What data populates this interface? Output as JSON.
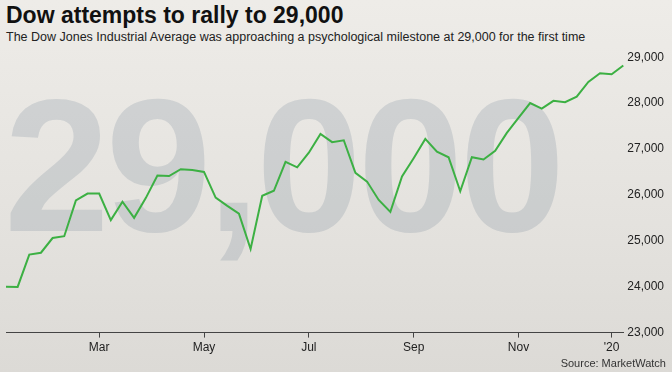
{
  "chart_data": {
    "type": "line",
    "title": "Dow attempts to rally to 29,000",
    "subtitle": "The Dow Jones Industrial Average was approaching a psychological milestone at 29,000 for the first time",
    "source": "Source: MarketWatch",
    "background_text": "29,000",
    "categories": [
      null,
      null,
      null,
      null,
      null,
      null,
      null,
      null,
      "Mar",
      null,
      null,
      null,
      null,
      null,
      null,
      null,
      null,
      "May",
      null,
      null,
      null,
      null,
      null,
      null,
      null,
      null,
      "Jul",
      null,
      null,
      null,
      null,
      null,
      null,
      null,
      null,
      "Sep",
      null,
      null,
      null,
      null,
      null,
      null,
      null,
      null,
      "Nov",
      null,
      null,
      null,
      null,
      null,
      null,
      null,
      "'20",
      null
    ],
    "series": [
      {
        "name": "Dow Jones Industrial Average",
        "color": "#3cb043",
        "values": [
          24000,
          23995,
          24700,
          24740,
          25060,
          25100,
          25880,
          26030,
          26030,
          25450,
          25850,
          25500,
          25930,
          26420,
          26410,
          26560,
          26540,
          26500,
          25940,
          25760,
          25590,
          24820,
          25980,
          26090,
          26720,
          26600,
          26920,
          27330,
          27150,
          27190,
          26480,
          26290,
          25890,
          25630,
          26400,
          26800,
          27220,
          26940,
          26820,
          26080,
          26820,
          26770,
          26960,
          27350,
          27680,
          28000,
          27880,
          28050,
          28020,
          28140,
          28460,
          28650,
          28630,
          28820
        ]
      }
    ],
    "ylim": [
      23000,
      29000
    ],
    "yticks": [
      {
        "value": 23000,
        "label": "23,000"
      },
      {
        "value": 24000,
        "label": "24,000"
      },
      {
        "value": 25000,
        "label": "25,000"
      },
      {
        "value": 26000,
        "label": "26,000"
      },
      {
        "value": 27000,
        "label": "27,000"
      },
      {
        "value": 28000,
        "label": "28,000"
      },
      {
        "value": 29000,
        "label": "29,000"
      }
    ],
    "grid": false
  }
}
